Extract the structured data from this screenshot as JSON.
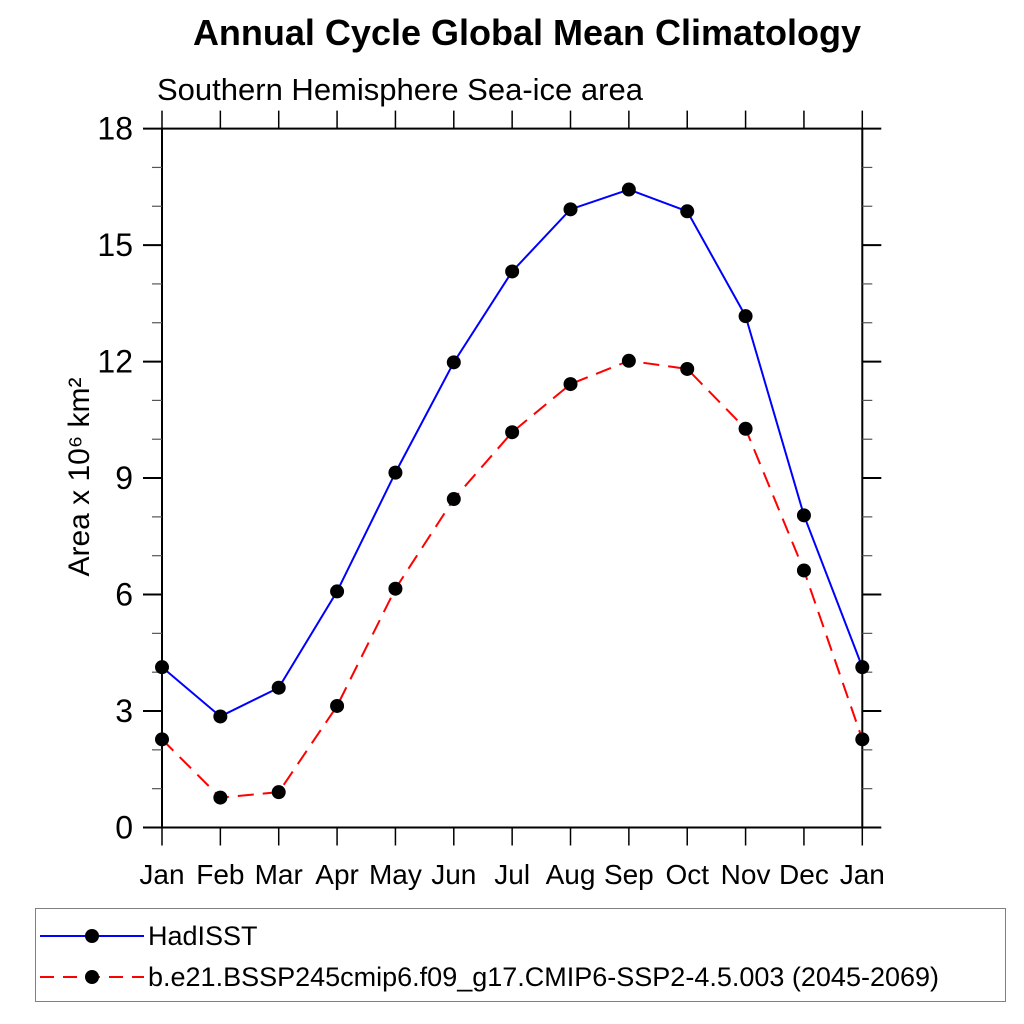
{
  "chart_data": {
    "type": "line",
    "title": "Annual Cycle Global Mean Climatology",
    "subtitle": "Southern Hemisphere Sea-ice area",
    "ylabel": "Area x 10⁶ km²",
    "xlabel": "",
    "categories": [
      "Jan",
      "Feb",
      "Mar",
      "Apr",
      "May",
      "Jun",
      "Jul",
      "Aug",
      "Sep",
      "Oct",
      "Nov",
      "Dec",
      "Jan"
    ],
    "ylim": [
      0,
      18
    ],
    "ytick_major": [
      0,
      3,
      6,
      9,
      12,
      15,
      18
    ],
    "ytick_minor_step": 1,
    "grid": false,
    "legend_position": "bottom",
    "series": [
      {
        "name": "HadISST",
        "color": "#0000ff",
        "style": "solid",
        "marker": "circle",
        "marker_color": "#000000",
        "values": [
          4.13,
          2.86,
          3.6,
          6.08,
          9.14,
          11.98,
          14.32,
          15.92,
          16.43,
          15.87,
          13.17,
          8.04,
          4.13
        ]
      },
      {
        "name": "b.e21.BSSP245cmip6.f09_g17.CMIP6-SSP2-4.5.003 (2045-2069)",
        "color": "#ff0000",
        "style": "dashed",
        "marker": "circle",
        "marker_color": "#000000",
        "values": [
          2.27,
          0.77,
          0.91,
          3.13,
          6.15,
          8.46,
          10.18,
          11.42,
          12.02,
          11.81,
          10.27,
          6.62,
          2.27
        ]
      }
    ]
  }
}
